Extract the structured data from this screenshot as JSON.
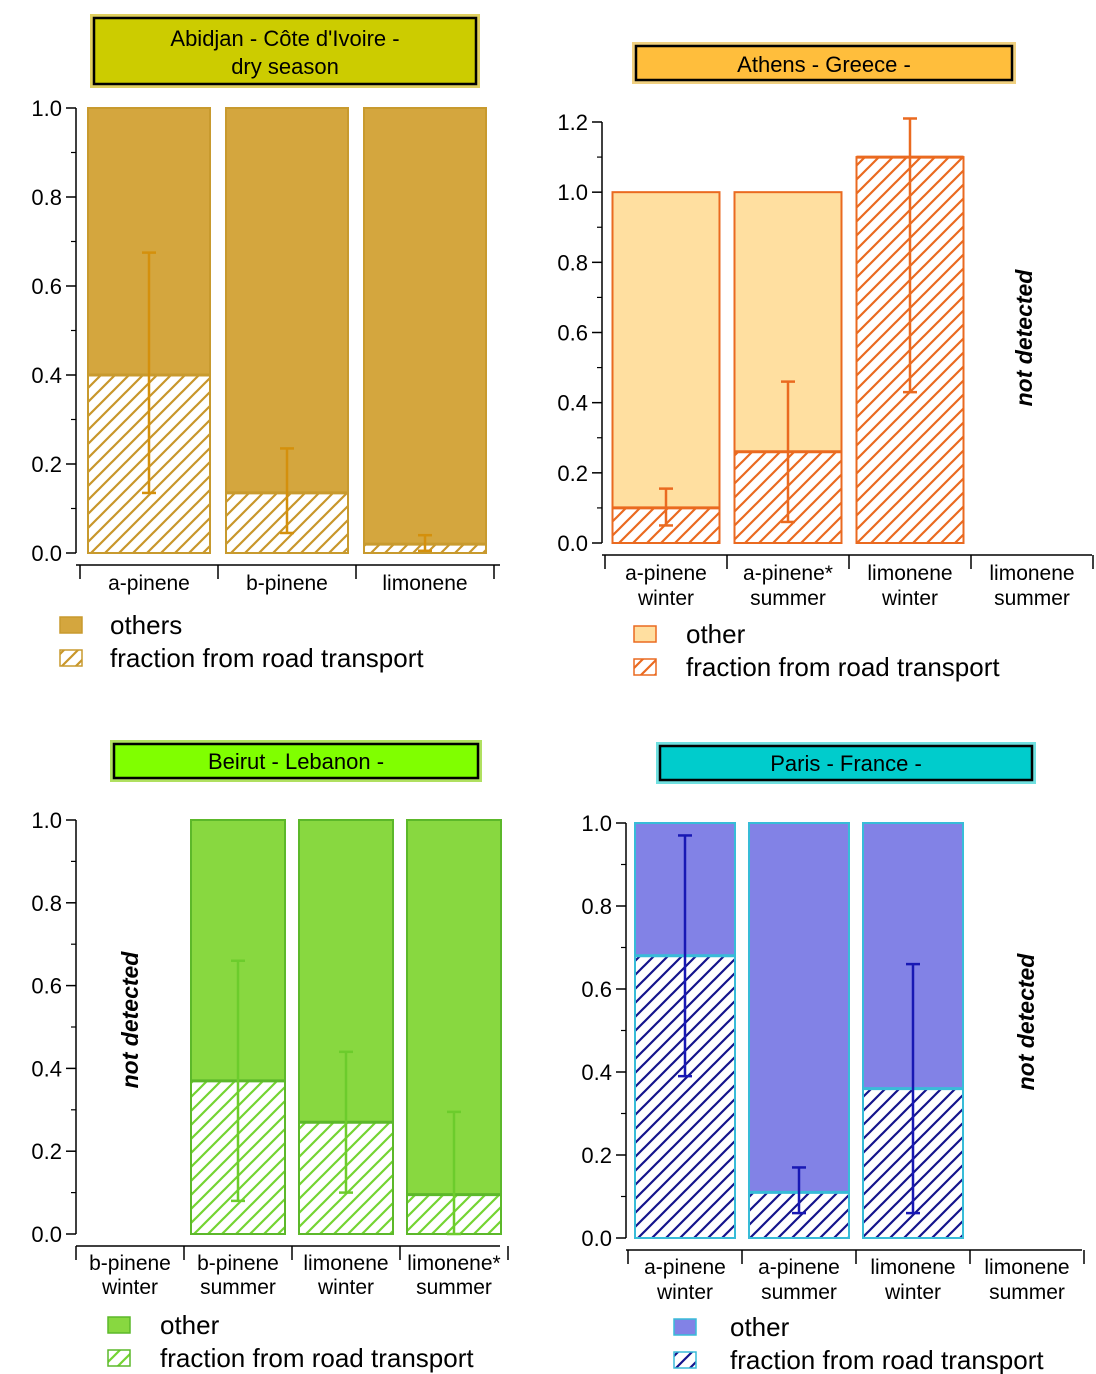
{
  "chart_data": [
    {
      "type": "bar",
      "stacked": true,
      "title_lines": [
        "Abidjan - Côte d'Ivoire -",
        "dry season"
      ],
      "title_bg": "#cccc00",
      "title_border": "#e0d060",
      "categories": [
        [
          "a-pinene"
        ],
        [
          "b-pinene"
        ],
        [
          "limonene"
        ]
      ],
      "ylim": [
        0,
        1.0
      ],
      "yticks": [
        "0.0",
        "0.2",
        "0.4",
        "0.6",
        "0.8",
        "1.0"
      ],
      "series": [
        {
          "name": "fraction from road transport",
          "values": [
            0.4,
            0.135,
            0.02
          ]
        },
        {
          "name": "others",
          "values": [
            0.6,
            0.865,
            0.98
          ]
        }
      ],
      "error_low": [
        0.135,
        0.045,
        0.005
      ],
      "error_high": [
        0.675,
        0.235,
        0.04
      ],
      "colors": {
        "other_fill": "#d4a63e",
        "stroke": "#c89a2e",
        "hatch": "#c8962a",
        "error": "#d4900c"
      },
      "legend": [
        {
          "label": "others",
          "kind": "solid"
        },
        {
          "label": "fraction from road transport",
          "kind": "hatch"
        }
      ]
    },
    {
      "type": "bar",
      "stacked": true,
      "title_lines": [
        "Athens - Greece -"
      ],
      "title_bg": "#ffbe3c",
      "title_border": "#f0d080",
      "categories": [
        [
          "a-pinene",
          "winter"
        ],
        [
          "a-pinene*",
          "summer"
        ],
        [
          "limonene",
          "winter"
        ],
        [
          "limonene",
          "summer"
        ]
      ],
      "ylim": [
        0,
        1.2
      ],
      "yticks": [
        "0.0",
        "0.2",
        "0.4",
        "0.6",
        "0.8",
        "1.0",
        "1.2"
      ],
      "series": [
        {
          "name": "fraction from road transport",
          "values": [
            0.1,
            0.26,
            1.1,
            null
          ]
        },
        {
          "name": "other",
          "values": [
            0.9,
            0.74,
            0.0,
            null
          ]
        }
      ],
      "error_low": [
        0.05,
        0.06,
        0.43,
        null
      ],
      "error_high": [
        0.155,
        0.46,
        1.21,
        null
      ],
      "not_detected": "not detected",
      "colors": {
        "other_fill": "#ffdfa0",
        "stroke": "#ea6a20",
        "hatch": "#ea6a20",
        "error": "#ea6a20"
      },
      "legend": [
        {
          "label": "other",
          "kind": "solid"
        },
        {
          "label": "fraction from road transport",
          "kind": "hatch"
        }
      ]
    },
    {
      "type": "bar",
      "stacked": true,
      "title_lines": [
        "Beirut - Lebanon -"
      ],
      "title_bg": "#80ff00",
      "title_border": "#b0e060",
      "categories": [
        [
          "b-pinene",
          "winter"
        ],
        [
          "b-pinene",
          "summer"
        ],
        [
          "limonene",
          "winter"
        ],
        [
          "limonene*",
          "summer"
        ]
      ],
      "ylim": [
        0,
        1.0
      ],
      "yticks": [
        "0.0",
        "0.2",
        "0.4",
        "0.6",
        "0.8",
        "1.0"
      ],
      "series": [
        {
          "name": "fraction from road transport",
          "values": [
            null,
            0.37,
            0.27,
            0.095
          ]
        },
        {
          "name": "other",
          "values": [
            null,
            0.63,
            0.73,
            0.905
          ]
        }
      ],
      "error_low": [
        null,
        0.08,
        0.1,
        0.0
      ],
      "error_high": [
        null,
        0.66,
        0.44,
        0.295
      ],
      "not_detected": "not detected",
      "colors": {
        "other_fill": "#88d840",
        "stroke": "#5cb82a",
        "hatch": "#74d432",
        "error": "#6ccc2c"
      },
      "legend": [
        {
          "label": "other",
          "kind": "solid"
        },
        {
          "label": "fraction from road transport",
          "kind": "hatch"
        }
      ]
    },
    {
      "type": "bar",
      "stacked": true,
      "title_lines": [
        "Paris - France -"
      ],
      "title_bg": "#00cccc",
      "title_border": "#70e0e0",
      "categories": [
        [
          "a-pinene",
          "winter"
        ],
        [
          "a-pinene",
          "summer"
        ],
        [
          "limonene",
          "winter"
        ],
        [
          "limonene",
          "summer"
        ]
      ],
      "ylim": [
        0,
        1.0
      ],
      "yticks": [
        "0.0",
        "0.2",
        "0.4",
        "0.6",
        "0.8",
        "1.0"
      ],
      "series": [
        {
          "name": "fraction from road transport",
          "values": [
            0.68,
            0.11,
            0.36,
            null
          ]
        },
        {
          "name": "other",
          "values": [
            0.32,
            0.89,
            0.64,
            null
          ]
        }
      ],
      "error_low": [
        0.39,
        0.06,
        0.06,
        null
      ],
      "error_high": [
        0.97,
        0.17,
        0.66,
        null
      ],
      "not_detected": "not detected",
      "colors": {
        "other_fill": "#8282e6",
        "stroke": "#38bcd8",
        "hatch": "#14148c",
        "error": "#1818b4"
      },
      "legend": [
        {
          "label": "other",
          "kind": "solid"
        },
        {
          "label": "fraction from road transport",
          "kind": "hatch"
        }
      ]
    }
  ]
}
